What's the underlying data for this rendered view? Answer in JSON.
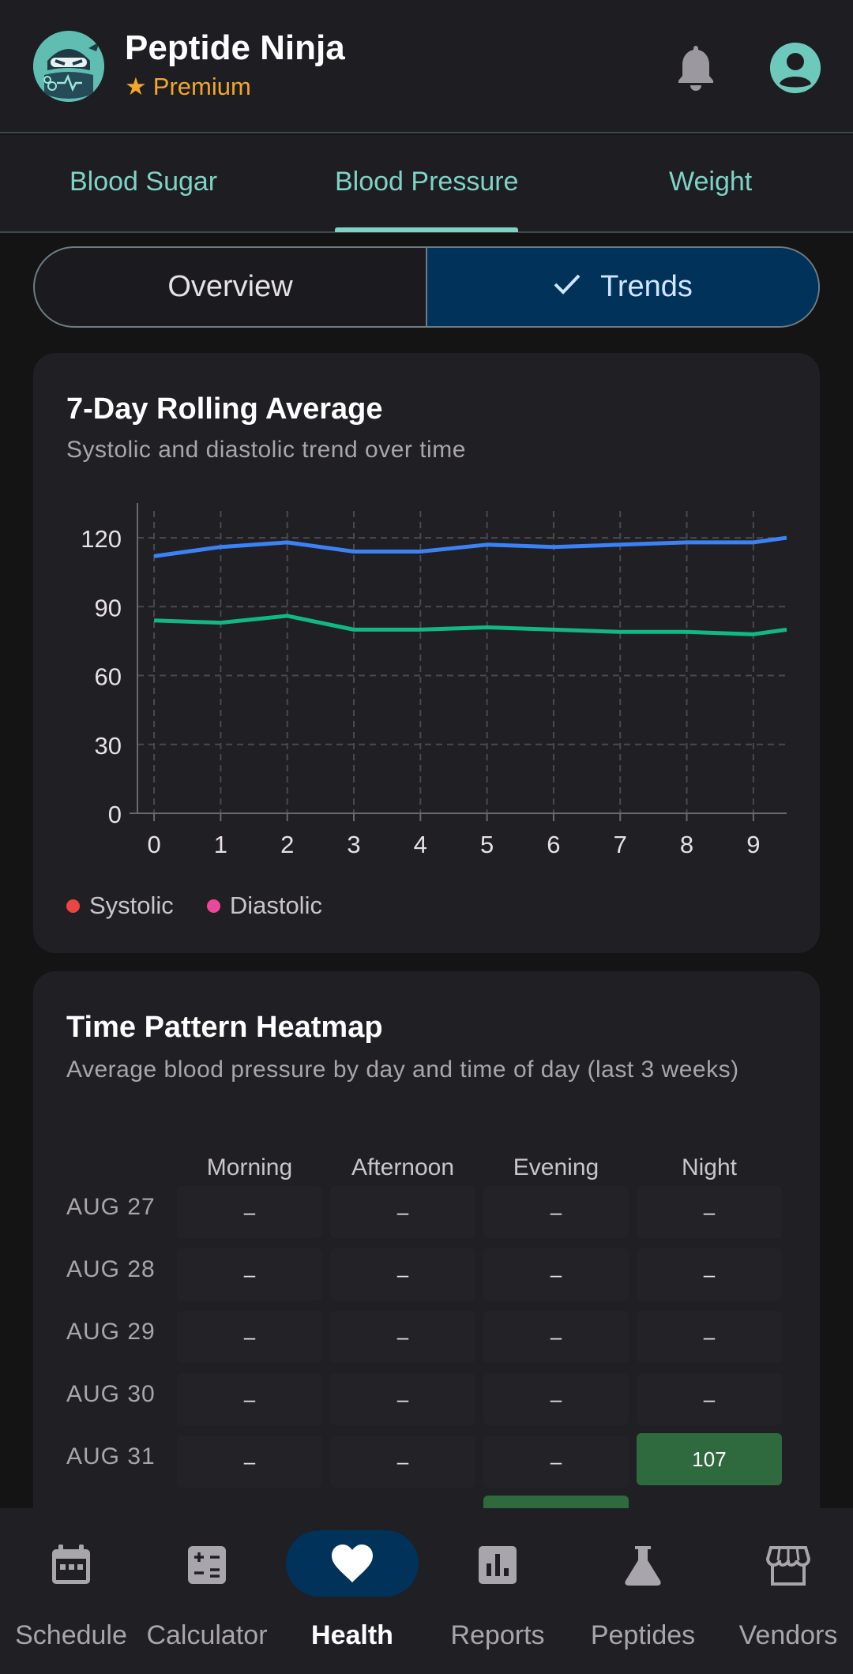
{
  "app": {
    "title": "Peptide Ninja",
    "badge": "Premium",
    "badge_icon": "star-icon"
  },
  "colors": {
    "background": "#141414",
    "surface": "#201f24",
    "accent": "#7fd3c6",
    "premium": "#f0a72a",
    "active_pill": "#00325a",
    "heatmap_green": "#2e6a3d"
  },
  "tabs": [
    {
      "label": "Blood Sugar",
      "active": false
    },
    {
      "label": "Blood Pressure",
      "active": true
    },
    {
      "label": "Weight",
      "active": false
    }
  ],
  "segmented": {
    "overview": "Overview",
    "trends": "Trends",
    "selected": "Trends"
  },
  "rolling_card": {
    "title": "7-Day Rolling Average",
    "subtitle": "Systolic and diastolic trend over time"
  },
  "chart_data": {
    "type": "line",
    "title": "7-Day Rolling Average",
    "subtitle": "Systolic and diastolic trend over time",
    "x": [
      0,
      1,
      2,
      3,
      4,
      5,
      6,
      7,
      8,
      9,
      9.5
    ],
    "xticks": [
      0,
      1,
      2,
      3,
      4,
      5,
      6,
      7,
      8,
      9
    ],
    "xlim": [
      -0.25,
      9.5
    ],
    "yticks": [
      0,
      30,
      60,
      90,
      120
    ],
    "ylim": [
      0,
      130
    ],
    "grid": true,
    "series": [
      {
        "name": "Systolic",
        "line_color": "#3b82f6",
        "legend_color": "#ef4444",
        "values": [
          112,
          116,
          118,
          114,
          114,
          117,
          116,
          117,
          118,
          118,
          120
        ]
      },
      {
        "name": "Diastolic",
        "line_color": "#10b981",
        "legend_color": "#ec4899",
        "values": [
          84,
          83,
          86,
          80,
          80,
          81,
          80,
          79,
          79,
          78,
          80
        ]
      }
    ],
    "legend_position": "bottom-left"
  },
  "heatmap_card": {
    "title": "Time Pattern Heatmap",
    "subtitle": "Average blood pressure by day and time of day (last 3 weeks)",
    "columns": [
      "Morning",
      "Afternoon",
      "Evening",
      "Night"
    ],
    "rows": [
      {
        "date": "AUG 27",
        "values": [
          "–",
          "–",
          "–",
          "–"
        ]
      },
      {
        "date": "AUG 28",
        "values": [
          "–",
          "–",
          "–",
          "–"
        ]
      },
      {
        "date": "AUG 29",
        "values": [
          "–",
          "–",
          "–",
          "–"
        ]
      },
      {
        "date": "AUG 30",
        "values": [
          "–",
          "–",
          "–",
          "–"
        ]
      },
      {
        "date": "AUG 31",
        "values": [
          "–",
          "–",
          "–",
          "107"
        ]
      }
    ]
  },
  "bottom_nav": [
    {
      "label": "Schedule",
      "icon": "calendar-icon",
      "active": false
    },
    {
      "label": "Calculator",
      "icon": "calculator-icon",
      "active": false
    },
    {
      "label": "Health",
      "icon": "heart-icon",
      "active": true
    },
    {
      "label": "Reports",
      "icon": "bar-chart-icon",
      "active": false
    },
    {
      "label": "Peptides",
      "icon": "flask-icon",
      "active": false
    },
    {
      "label": "Vendors",
      "icon": "store-icon",
      "active": false
    }
  ]
}
